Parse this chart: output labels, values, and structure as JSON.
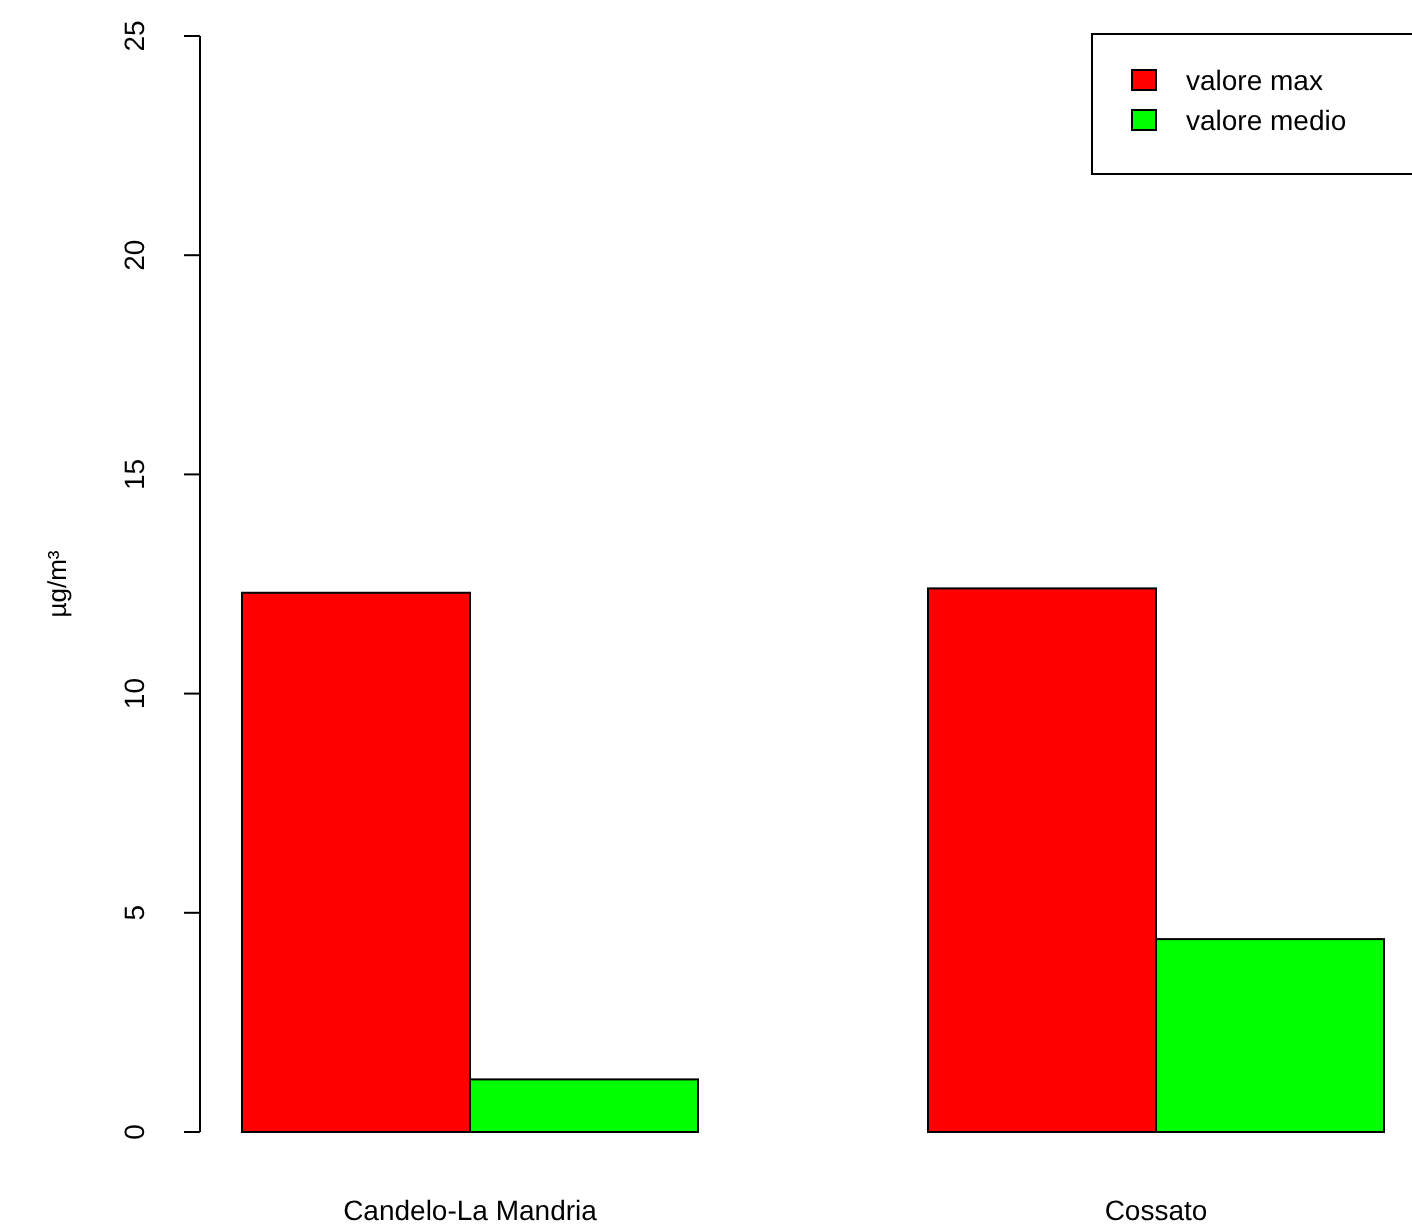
{
  "chart_data": {
    "type": "bar",
    "ylabel": "µg/m³",
    "categories": [
      "Candelo-La Mandria",
      "Cossato"
    ],
    "series": [
      {
        "name": "valore max",
        "color": "#ff0000",
        "values": [
          12.3,
          12.4
        ]
      },
      {
        "name": "valore medio",
        "color": "#00ff00",
        "values": [
          1.2,
          4.4
        ]
      }
    ],
    "ylim": [
      0,
      25
    ],
    "yticks": [
      0,
      5,
      10,
      15,
      20,
      25
    ],
    "grid": false,
    "legend": "top right"
  }
}
